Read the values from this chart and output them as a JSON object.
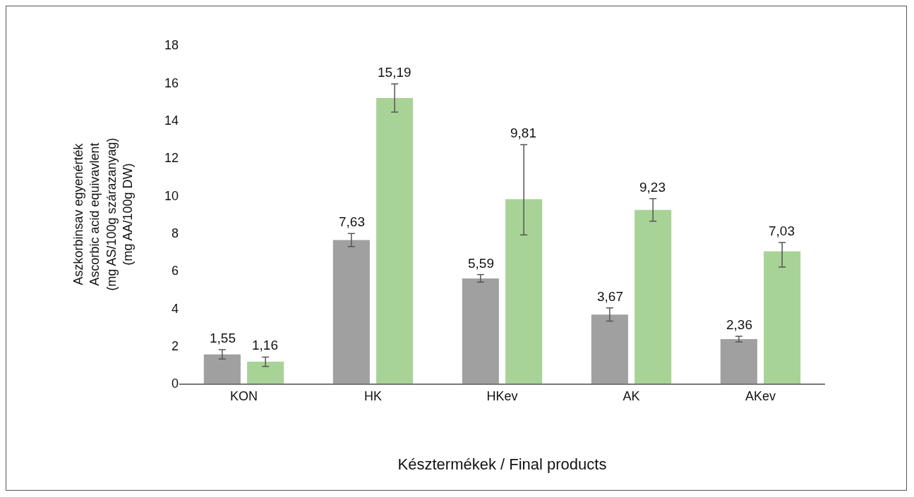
{
  "chart_data": {
    "type": "bar",
    "categories": [
      "KON",
      "HK",
      "HKev",
      "AK",
      "AKev"
    ],
    "series": [
      {
        "color": "#a0a0a0",
        "values": [
          1.55,
          7.63,
          5.59,
          3.67,
          2.36
        ],
        "errors": [
          0.25,
          0.35,
          0.2,
          0.35,
          0.15
        ]
      },
      {
        "color": "#a8d396",
        "values": [
          1.16,
          15.19,
          9.81,
          9.23,
          7.03
        ],
        "errors": [
          0.25,
          0.75,
          [
            7.9,
            12.7
          ],
          0.6,
          [
            6.2,
            7.5
          ]
        ]
      }
    ],
    "value_labels": [
      [
        "1,55",
        "7,63",
        "5,59",
        "3,67",
        "2,36"
      ],
      [
        "1,16",
        "15,19",
        "9,81",
        "9,23",
        "7,03"
      ]
    ],
    "ylabel": "Aszkorbinsav egyenérték\nAscorbic acid equivavlent\n(mg AS/100g szárazanyag)\n(mg AA/100g DW)",
    "xlabel": "Késztermékek / Final products",
    "ylim": [
      0,
      18
    ],
    "yticks": [
      0,
      2,
      4,
      6,
      8,
      10,
      12,
      14,
      16,
      18
    ],
    "grid": false
  }
}
